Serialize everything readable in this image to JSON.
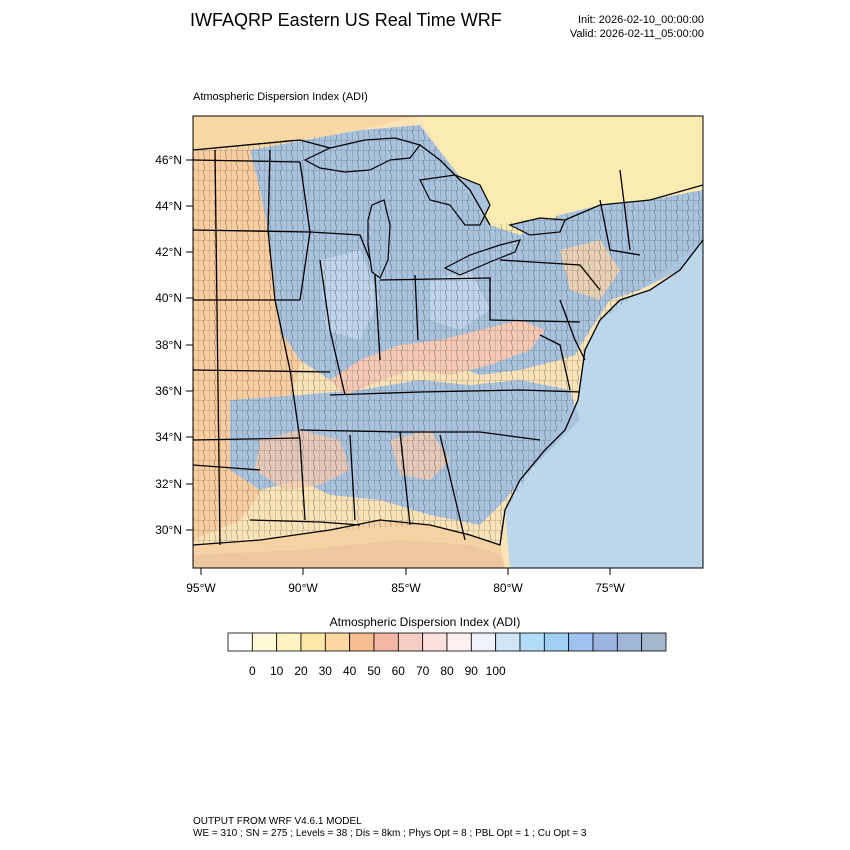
{
  "header": {
    "title": "IWFAQRP Eastern US Real Time WRF",
    "init": "Init: 2026-02-10_00:00:00",
    "valid": "Valid: 2026-02-11_05:00:00"
  },
  "field_title": "Atmospheric Dispersion Index   (ADI)",
  "map": {
    "lat_labels": [
      "46°N",
      "44°N",
      "42°N",
      "40°N",
      "38°N",
      "36°N",
      "34°N",
      "32°N",
      "30°N"
    ],
    "lon_labels": [
      "95°W",
      "90°W",
      "85°W",
      "80°W",
      "75°W"
    ],
    "colors": {
      "low_yellow": "#fbe6a6",
      "mid_orange": "#f6c49a",
      "pink": "#f5c9c4",
      "blue": "#a9c3de",
      "light_blue": "#c6dcef",
      "ocean": "#bcd6ea",
      "border": "#000000"
    }
  },
  "colorbar": {
    "title": "Atmospheric Dispersion Index  (ADI)",
    "labels": [
      "0",
      "10",
      "20",
      "30",
      "40",
      "50",
      "60",
      "70",
      "80",
      "90",
      "100"
    ],
    "colors": [
      "#ffffff",
      "#fffbd9",
      "#fff3c2",
      "#fee8a8",
      "#fcd7a0",
      "#f8bd8e",
      "#f4b7a6",
      "#f6cdc4",
      "#fbe0db",
      "#fdf0ee",
      "#eef3fb",
      "#cfe6f8",
      "#b2dcf8",
      "#9fd0f4",
      "#a0c2ee",
      "#9cb4e2",
      "#9fb6d6",
      "#a3b8cf"
    ]
  },
  "footer": {
    "line1": "OUTPUT FROM WRF V4.6.1 MODEL",
    "line2": "WE = 310 ; SN = 275 ; Levels = 38 ; Dis = 8km ; Phys Opt = 8 ; PBL Opt = 1 ; Cu Opt = 3"
  }
}
